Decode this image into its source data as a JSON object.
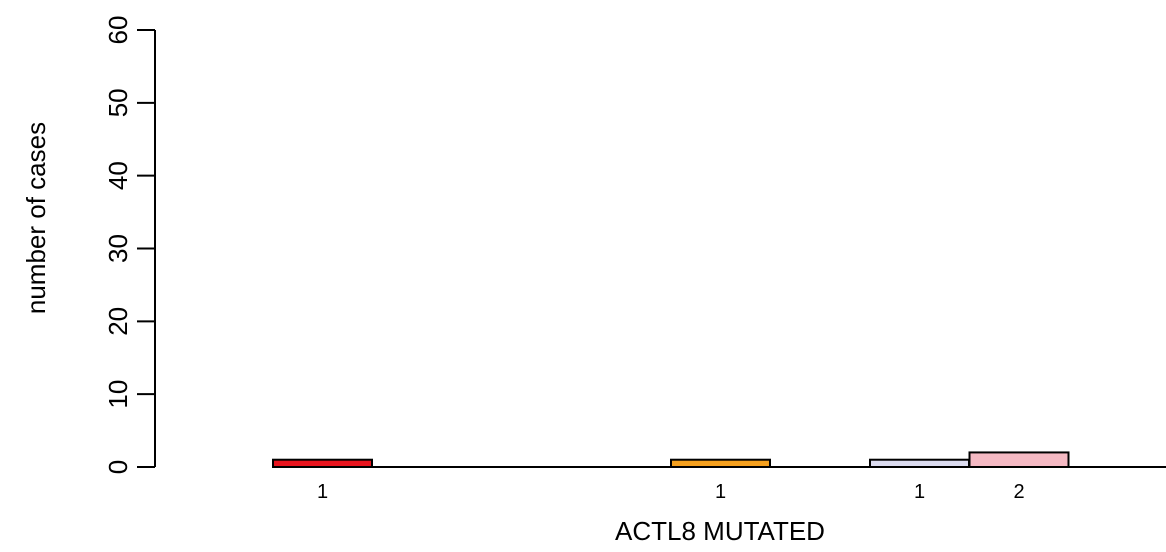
{
  "chart_data": {
    "type": "bar",
    "title": "",
    "xlabel": "ACTL8 MUTATED",
    "ylabel": "number of cases",
    "ylim": [
      0,
      60
    ],
    "yticks": [
      0,
      10,
      20,
      30,
      40,
      50,
      60
    ],
    "grid": false,
    "legend": "none",
    "bars": [
      {
        "slot": 0,
        "value": 1,
        "label": "1",
        "color": "#e8141e"
      },
      {
        "slot": 4,
        "value": 1,
        "label": "1",
        "color": "#f5a01e"
      },
      {
        "slot": 6,
        "value": 1,
        "label": "1",
        "color": "#dcdcf0"
      },
      {
        "slot": 7,
        "value": 2,
        "label": "2",
        "color": "#f5b9c3"
      }
    ],
    "slot_count": 8
  }
}
